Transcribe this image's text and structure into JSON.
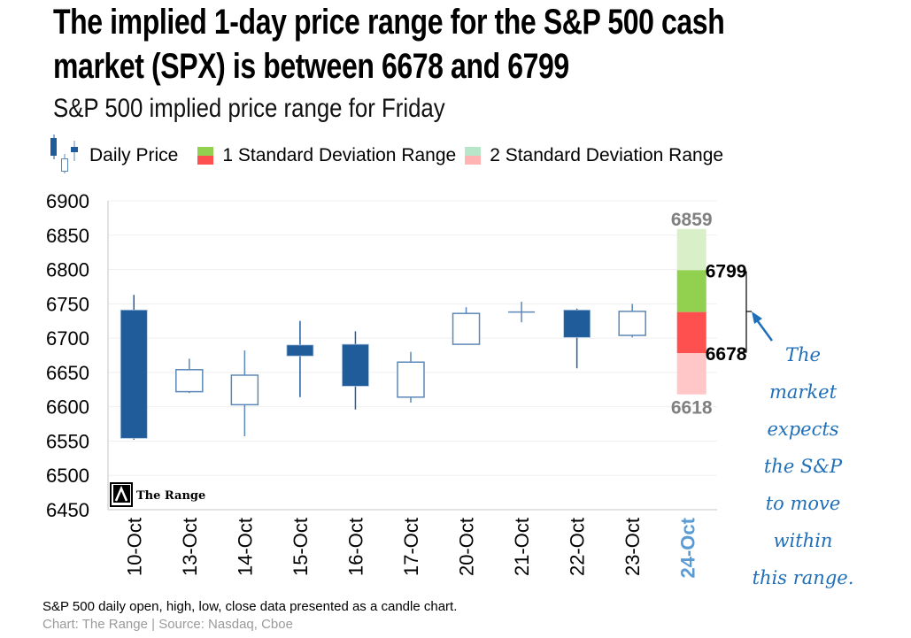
{
  "header": {
    "title_line1": "The implied 1-day price range for the S&P 500 cash",
    "title_line2": "market (SPX) is between 6678 and 6799",
    "subtitle_prefix": "S&P 500 implied price range for",
    "subtitle_day": "Friday"
  },
  "legend": {
    "daily_price": "Daily Price",
    "one_sd": "1 Standard Deviation Range",
    "two_sd": "2 Standard Deviation Range"
  },
  "annotation": {
    "lines": [
      "The",
      "market",
      "expects",
      "the S&P",
      "to move",
      "within",
      "this range."
    ]
  },
  "watermark": "The Range",
  "footer": {
    "note": "S&P 500 daily open, high, low, close data presented as a candle chart.",
    "source": "Chart: The Range | Source: Nasdaq, Cboe"
  },
  "colors": {
    "candle": "#1f5c99",
    "candle_hollow_stroke": "#5b88b8",
    "one_sd_up": "#92d050",
    "one_sd_down": "#ff5050",
    "two_sd_up": "#d9efc8",
    "two_sd_down": "#ffc7c7",
    "highlight_label": "#5b9bd5",
    "range_label_outer": "#808080",
    "annotation": "#1f6fb8"
  },
  "chart_data": {
    "type": "candlestick",
    "title": "S&P 500 implied price range for Friday",
    "xlabel": "",
    "ylabel": "",
    "ylim": [
      6450,
      6900
    ],
    "yticks": [
      6900,
      6850,
      6800,
      6750,
      6700,
      6650,
      6600,
      6550,
      6500,
      6450
    ],
    "grid": true,
    "legend_position": "top",
    "categories": [
      "10-Oct",
      "13-Oct",
      "14-Oct",
      "15-Oct",
      "16-Oct",
      "17-Oct",
      "20-Oct",
      "21-Oct",
      "22-Oct",
      "23-Oct",
      "24-Oct"
    ],
    "highlight_category": "24-Oct",
    "ohlc": [
      {
        "date": "10-Oct",
        "open": 6741,
        "high": 6763,
        "low": 6552,
        "close": 6554
      },
      {
        "date": "13-Oct",
        "open": 6622,
        "high": 6670,
        "low": 6620,
        "close": 6654
      },
      {
        "date": "14-Oct",
        "open": 6603,
        "high": 6682,
        "low": 6557,
        "close": 6646
      },
      {
        "date": "15-Oct",
        "open": 6690,
        "high": 6725,
        "low": 6614,
        "close": 6674
      },
      {
        "date": "16-Oct",
        "open": 6691,
        "high": 6710,
        "low": 6596,
        "close": 6630
      },
      {
        "date": "17-Oct",
        "open": 6614,
        "high": 6680,
        "low": 6606,
        "close": 6665
      },
      {
        "date": "20-Oct",
        "open": 6691,
        "high": 6745,
        "low": 6691,
        "close": 6736
      },
      {
        "date": "21-Oct",
        "open": 6738,
        "high": 6753,
        "low": 6723,
        "close": 6738
      },
      {
        "date": "22-Oct",
        "open": 6741,
        "high": 6743,
        "low": 6656,
        "close": 6701
      },
      {
        "date": "23-Oct",
        "open": 6704,
        "high": 6750,
        "low": 6701,
        "close": 6739
      }
    ],
    "implied_range": {
      "date": "24-Oct",
      "center": 6738,
      "one_sd": [
        6678,
        6799
      ],
      "two_sd": [
        6618,
        6859
      ],
      "labels": {
        "two_sd_high": "6859",
        "one_sd_high": "6799",
        "one_sd_low": "6678",
        "two_sd_low": "6618"
      }
    }
  }
}
